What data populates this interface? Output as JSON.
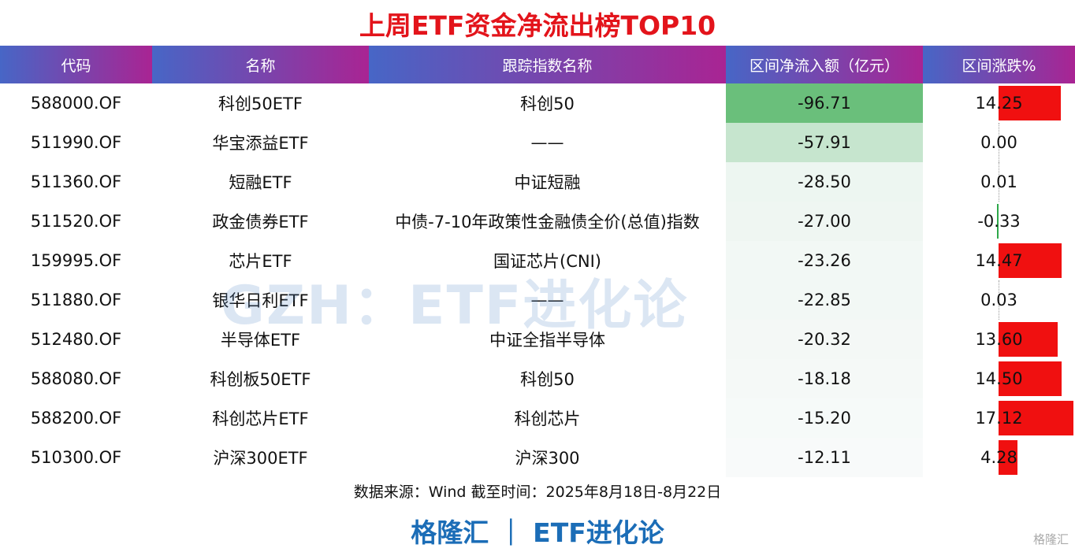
{
  "header": {
    "title": "上周ETF资金净流出榜TOP10"
  },
  "table": {
    "columns": [
      "代码",
      "名称",
      "跟踪指数名称",
      "区间净流入额（亿元）",
      "区间涨跌%"
    ],
    "rows": [
      [
        "588000.OF",
        "科创50ETF",
        "科创50",
        "-96.71",
        "14.25"
      ],
      [
        "511990.OF",
        "华宝添益ETF",
        "——",
        "-57.91",
        "0.00"
      ],
      [
        "511360.OF",
        "短融ETF",
        "中证短融",
        "-28.50",
        "0.01"
      ],
      [
        "511520.OF",
        "政金债券ETF",
        "中债-7-10年政策性金融债全价(总值)指数",
        "-27.00",
        "-0.33"
      ],
      [
        "159995.OF",
        "芯片ETF",
        "国证芯片(CNI)",
        "-23.26",
        "14.47"
      ],
      [
        "511880.OF",
        "银华日利ETF",
        "——",
        "-22.85",
        "0.03"
      ],
      [
        "512480.OF",
        "半导体ETF",
        "中证全指半导体",
        "-20.32",
        "13.60"
      ],
      [
        "588080.OF",
        "科创板50ETF",
        "科创50",
        "-18.18",
        "14.50"
      ],
      [
        "588200.OF",
        "科创芯片ETF",
        "科创芯片",
        "-15.20",
        "17.12"
      ],
      [
        "510300.OF",
        "沪深300ETF",
        "沪深300",
        "-12.11",
        "4.28"
      ]
    ]
  },
  "source": "数据来源：Wind 截至时间：2025年8月18日-8月22日",
  "footer": "格隆汇 ｜ ETF进化论",
  "watermark": "GZH：ETF进化论",
  "corner_logo": "格隆汇"
}
